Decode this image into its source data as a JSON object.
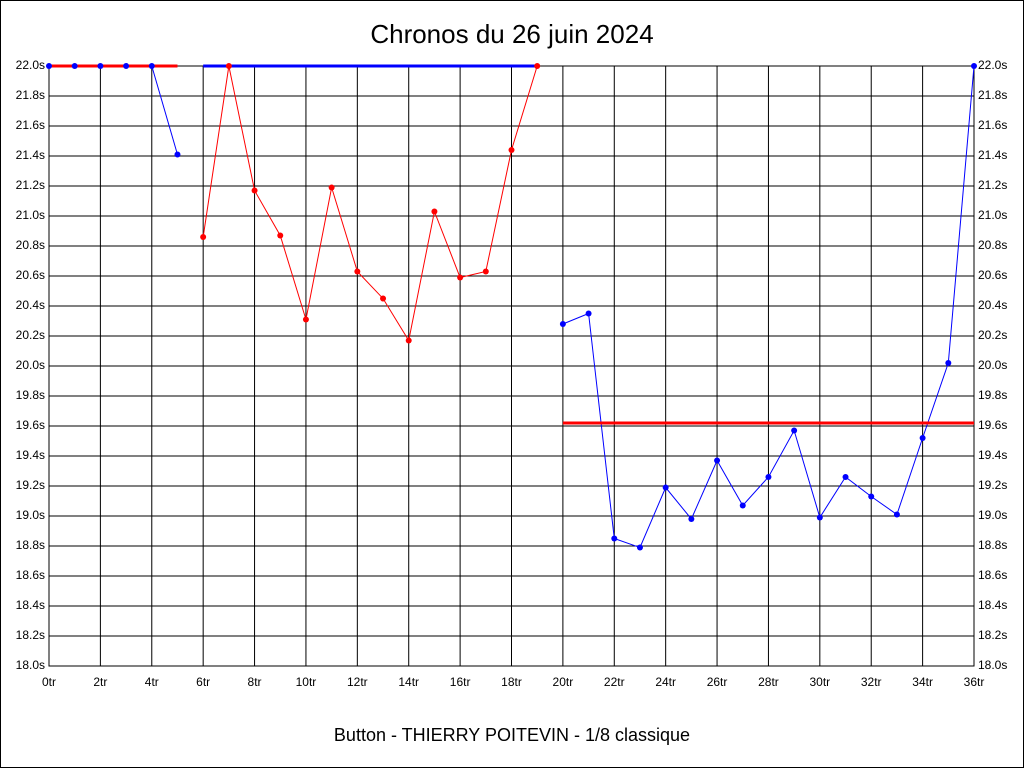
{
  "chart_data": {
    "type": "line",
    "title": "Chronos du 26 juin 2024",
    "x_label": "Button - THIERRY POITEVIN - 1/8 classique",
    "series": [
      {
        "color": "#0000ff",
        "x": [
          0,
          1,
          2,
          3,
          4,
          5
        ],
        "values": [
          22.0,
          22.0,
          22.0,
          22.0,
          22.0,
          21.41
        ]
      },
      {
        "color": "#ff0000",
        "x": [
          6,
          7,
          8,
          9,
          10,
          11,
          12,
          13,
          14,
          15,
          16,
          17,
          18,
          19
        ],
        "values": [
          20.86,
          22.0,
          21.17,
          20.87,
          20.31,
          21.19,
          20.63,
          20.45,
          20.17,
          21.03,
          20.59,
          20.63,
          21.44,
          22.0
        ]
      },
      {
        "color": "#0000ff",
        "x": [
          20,
          21,
          22,
          23,
          24,
          25,
          26,
          27,
          28,
          29,
          30,
          31,
          32,
          33,
          34,
          35,
          36
        ],
        "values": [
          20.28,
          20.35,
          18.85,
          18.79,
          19.19,
          18.98,
          19.37,
          19.07,
          19.26,
          19.57,
          18.99,
          19.26,
          19.13,
          19.01,
          19.52,
          20.02,
          22.0
        ]
      }
    ],
    "reference_lines": [
      {
        "color": "#ff0000",
        "x": [
          0,
          5
        ],
        "value": 22.0
      },
      {
        "color": "#0000ff",
        "x": [
          6,
          19
        ],
        "value": 22.0
      },
      {
        "color": "#ff0000",
        "x": [
          20,
          36
        ],
        "value": 19.62
      }
    ],
    "xlim": [
      0,
      36
    ],
    "ylim": [
      18.0,
      22.0
    ],
    "xticks": [
      {
        "value": 0,
        "label": "0tr"
      },
      {
        "value": 2,
        "label": "2tr"
      },
      {
        "value": 4,
        "label": "4tr"
      },
      {
        "value": 6,
        "label": "6tr"
      },
      {
        "value": 8,
        "label": "8tr"
      },
      {
        "value": 10,
        "label": "10tr"
      },
      {
        "value": 12,
        "label": "12tr"
      },
      {
        "value": 14,
        "label": "14tr"
      },
      {
        "value": 16,
        "label": "16tr"
      },
      {
        "value": 18,
        "label": "18tr"
      },
      {
        "value": 20,
        "label": "20tr"
      },
      {
        "value": 22,
        "label": "22tr"
      },
      {
        "value": 24,
        "label": "24tr"
      },
      {
        "value": 26,
        "label": "26tr"
      },
      {
        "value": 28,
        "label": "28tr"
      },
      {
        "value": 30,
        "label": "30tr"
      },
      {
        "value": 32,
        "label": "32tr"
      },
      {
        "value": 34,
        "label": "34tr"
      },
      {
        "value": 36,
        "label": "36tr"
      }
    ],
    "yticks": [
      {
        "value": 18.0,
        "label": "18.0s"
      },
      {
        "value": 18.2,
        "label": "18.2s"
      },
      {
        "value": 18.4,
        "label": "18.4s"
      },
      {
        "value": 18.6,
        "label": "18.6s"
      },
      {
        "value": 18.8,
        "label": "18.8s"
      },
      {
        "value": 19.0,
        "label": "19.0s"
      },
      {
        "value": 19.2,
        "label": "19.2s"
      },
      {
        "value": 19.4,
        "label": "19.4s"
      },
      {
        "value": 19.6,
        "label": "19.6s"
      },
      {
        "value": 19.8,
        "label": "19.8s"
      },
      {
        "value": 20.0,
        "label": "20.0s"
      },
      {
        "value": 20.2,
        "label": "20.2s"
      },
      {
        "value": 20.4,
        "label": "20.4s"
      },
      {
        "value": 20.6,
        "label": "20.6s"
      },
      {
        "value": 20.8,
        "label": "20.8s"
      },
      {
        "value": 21.0,
        "label": "21.0s"
      },
      {
        "value": 21.2,
        "label": "21.2s"
      },
      {
        "value": 21.4,
        "label": "21.4s"
      },
      {
        "value": 21.6,
        "label": "21.6s"
      },
      {
        "value": 21.8,
        "label": "21.8s"
      },
      {
        "value": 22.0,
        "label": "22.0s"
      }
    ],
    "grid": true
  }
}
